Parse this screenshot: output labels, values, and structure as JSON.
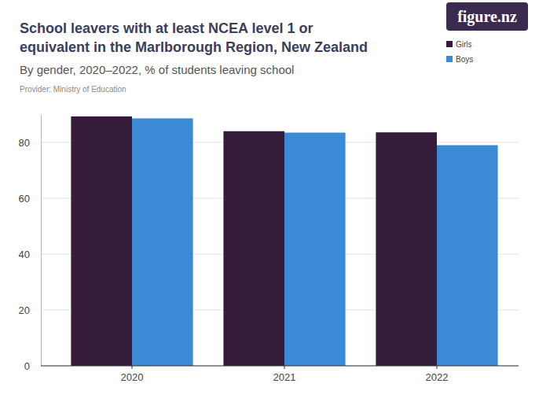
{
  "chart_data": {
    "type": "bar",
    "title": "School leavers with at least NCEA level 1 or equivalent in the Marlborough Region, New Zealand",
    "subtitle": "By gender, 2020–2022, % of students leaving school",
    "annotations": [
      "Provider: Ministry of Education",
      "figure.nz"
    ],
    "categories": [
      "2020",
      "2021",
      "2022"
    ],
    "series": [
      {
        "name": "Girls",
        "color": "#351c3a",
        "values": [
          89.3,
          84.0,
          83.6
        ]
      },
      {
        "name": "Boys",
        "color": "#3a8ad6",
        "values": [
          88.6,
          83.5,
          79.0
        ]
      }
    ],
    "ylim": [
      0,
      90
    ],
    "yticks": [
      0,
      20,
      40,
      60,
      80
    ],
    "grid": true,
    "legend": "top-right"
  }
}
